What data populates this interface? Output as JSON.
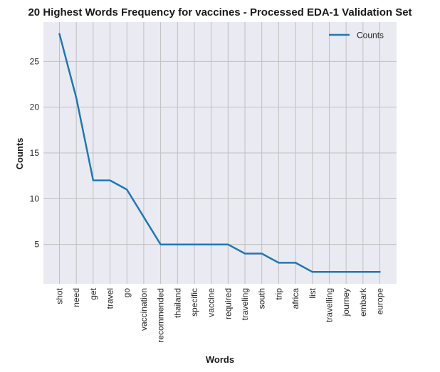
{
  "chart_data": {
    "type": "line",
    "title": "20 Highest Words Frequency for vaccines - Processed EDA-1 Validation Set",
    "xlabel": "Words",
    "ylabel": "Counts",
    "categories": [
      "shot",
      "need",
      "get",
      "travel",
      "go",
      "vaccination",
      "recommended",
      "thailand",
      "specific",
      "vaccine",
      "required",
      "traveling",
      "south",
      "trip",
      "africa",
      "list",
      "travelling",
      "journey",
      "embark",
      "europe"
    ],
    "series": [
      {
        "name": "Counts",
        "values": [
          28,
          21,
          12,
          12,
          11,
          8,
          5,
          5,
          5,
          5,
          5,
          4,
          4,
          3,
          3,
          2,
          2,
          2,
          2,
          2
        ]
      }
    ],
    "yticks": [
      5,
      10,
      15,
      20,
      25
    ],
    "ylim": [
      0.7,
      29.3
    ],
    "grid": true,
    "legend": "top-right",
    "colors": {
      "background": "#eaeaf2",
      "grid": "#c0c0c0",
      "line": "#1f77b4"
    }
  }
}
